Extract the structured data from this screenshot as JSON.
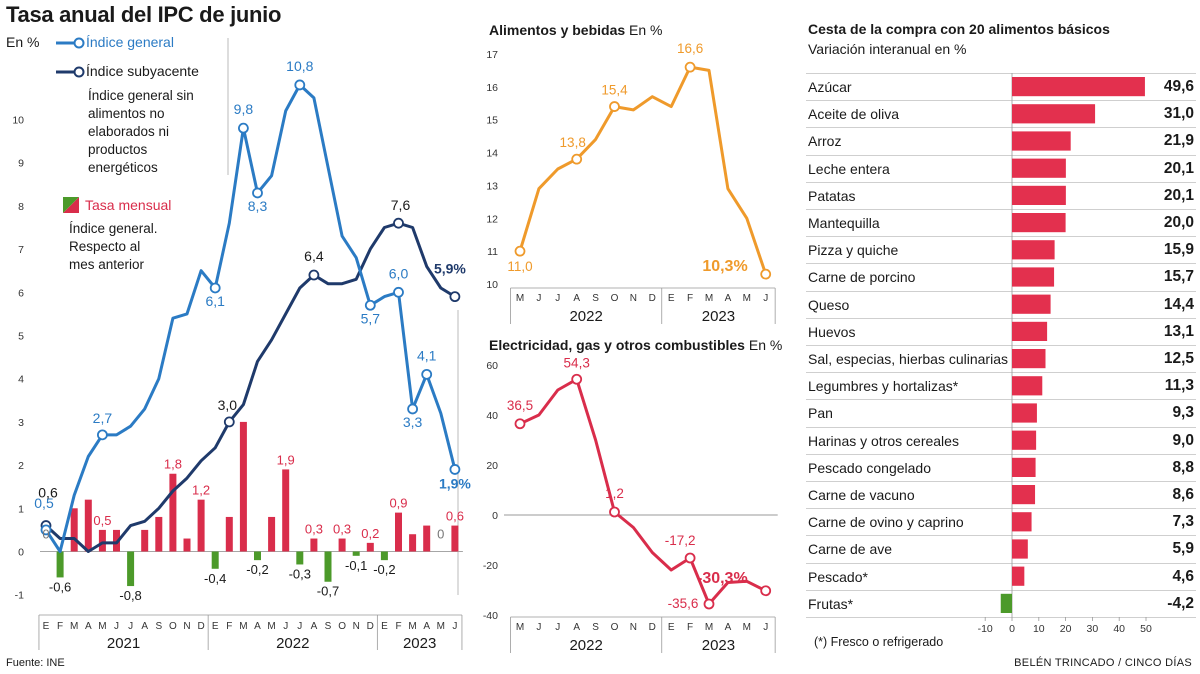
{
  "header": {
    "title": "Tasa anual del IPC de junio",
    "unit": "En %",
    "legend_general": "Índice general",
    "legend_subyacente": "Índice subyacente",
    "subyacente_note": [
      "Índice general sin",
      "alimentos no",
      "elaborados ni",
      "productos",
      "energéticos"
    ],
    "legend_mensual": "Tasa mensual",
    "mensual_note": [
      "Índice general.",
      "Respecto al",
      "mes anterior"
    ]
  },
  "colors": {
    "general": "#2b7bc4",
    "subyacente": "#1f3a6b",
    "monthly_pos": "#d92d4b",
    "monthly_neg": "#4c9a2a",
    "food": "#ef9a2b",
    "elec": "#d92d4b",
    "basket_pos": "#e3304e",
    "basket_neg": "#4c9a2a"
  },
  "chart_data": [
    {
      "type": "line",
      "title": "Tasa anual del IPC de junio",
      "ylabel": "En %",
      "ylim": [
        -1,
        10
      ],
      "yticks": [
        "-1",
        "0",
        "1",
        "2",
        "3",
        "4",
        "5",
        "6",
        "7",
        "8",
        "9",
        "10"
      ],
      "month_ticks": [
        "E",
        "F",
        "M",
        "A",
        "M",
        "J",
        "J",
        "A",
        "S",
        "O",
        "N",
        "D",
        "E",
        "F",
        "M",
        "A",
        "M",
        "J",
        "J",
        "A",
        "S",
        "O",
        "N",
        "D",
        "E",
        "F",
        "M",
        "A",
        "M",
        "J"
      ],
      "years": [
        "2021",
        "2022",
        "2023"
      ],
      "series": [
        {
          "name": "Índice general",
          "values": [
            0.5,
            0.0,
            1.3,
            2.2,
            2.7,
            2.7,
            2.9,
            3.3,
            4.0,
            5.4,
            5.5,
            6.5,
            6.1,
            7.6,
            9.8,
            8.3,
            8.7,
            10.2,
            10.8,
            10.5,
            8.9,
            7.3,
            6.8,
            5.7,
            5.9,
            6.0,
            3.3,
            4.1,
            3.2,
            1.9
          ]
        },
        {
          "name": "Índice subyacente",
          "values": [
            0.6,
            0.3,
            0.3,
            0.0,
            0.2,
            0.2,
            0.6,
            0.7,
            1.0,
            1.4,
            1.7,
            2.1,
            2.4,
            3.0,
            3.4,
            4.4,
            4.9,
            5.5,
            6.1,
            6.4,
            6.2,
            6.2,
            6.3,
            7.0,
            7.5,
            7.6,
            7.5,
            6.6,
            6.1,
            5.9
          ]
        },
        {
          "name": "Tasa mensual",
          "values": [
            0.0,
            -0.6,
            1.0,
            1.2,
            0.5,
            0.5,
            -0.8,
            0.5,
            0.8,
            1.8,
            0.3,
            1.2,
            -0.4,
            0.8,
            3.0,
            -0.2,
            0.8,
            1.9,
            -0.3,
            0.3,
            -0.7,
            0.3,
            -0.1,
            0.2,
            -0.2,
            0.9,
            0.4,
            0.6,
            0.0,
            0.6
          ]
        }
      ],
      "annotations": {
        "general": [
          {
            "i": 0,
            "label": "0,5"
          },
          {
            "i": 4,
            "label": "2,7"
          },
          {
            "i": 12,
            "label": "6,1"
          },
          {
            "i": 14,
            "label": "9,8"
          },
          {
            "i": 15,
            "label": "8,3"
          },
          {
            "i": 18,
            "label": "10,8"
          },
          {
            "i": 23,
            "label": "5,7"
          },
          {
            "i": 25,
            "label": "6,0"
          },
          {
            "i": 26,
            "label": "3,3"
          },
          {
            "i": 27,
            "label": "4,1"
          },
          {
            "i": 29,
            "label": "1,9%"
          }
        ],
        "subyacente": [
          {
            "i": 0,
            "label": "0,6"
          },
          {
            "i": 13,
            "label": "3,0"
          },
          {
            "i": 19,
            "label": "6,4"
          },
          {
            "i": 25,
            "label": "7,6"
          },
          {
            "i": 29,
            "label": "5,9%"
          }
        ],
        "monthly": [
          {
            "i": 0,
            "label": "0"
          },
          {
            "i": 1,
            "label": "-0,6"
          },
          {
            "i": 4,
            "label": "0,5"
          },
          {
            "i": 6,
            "label": "-0,8"
          },
          {
            "i": 9,
            "label": "1,8"
          },
          {
            "i": 11,
            "label": "1,2"
          },
          {
            "i": 12,
            "label": "-0,4"
          },
          {
            "i": 15,
            "label": "-0,2"
          },
          {
            "i": 17,
            "label": "1,9"
          },
          {
            "i": 18,
            "label": "-0,3"
          },
          {
            "i": 19,
            "label": "0,3"
          },
          {
            "i": 20,
            "label": "-0,7"
          },
          {
            "i": 21,
            "label": "0,3"
          },
          {
            "i": 22,
            "label": "-0,1"
          },
          {
            "i": 23,
            "label": "0,2"
          },
          {
            "i": 24,
            "label": "-0,2"
          },
          {
            "i": 25,
            "label": "0,9"
          },
          {
            "i": 28,
            "label": "0"
          },
          {
            "i": 29,
            "label": "0,6"
          }
        ]
      }
    },
    {
      "type": "line",
      "title": "Alimentos y bebidas",
      "unit": "En %",
      "ylim": [
        10,
        17
      ],
      "yticks": [
        "10",
        "11",
        "12",
        "13",
        "14",
        "15",
        "16",
        "17"
      ],
      "month_ticks": [
        "M",
        "J",
        "J",
        "A",
        "S",
        "O",
        "N",
        "D",
        "E",
        "F",
        "M",
        "A",
        "M",
        "J"
      ],
      "years": [
        "2022",
        "2023"
      ],
      "series": [
        {
          "name": "Alimentos y bebidas",
          "values": [
            11.0,
            12.9,
            13.5,
            13.8,
            14.4,
            15.4,
            15.3,
            15.7,
            15.4,
            16.6,
            16.5,
            12.9,
            12.0,
            10.3
          ]
        }
      ],
      "annotations": [
        {
          "i": 0,
          "label": "11,0"
        },
        {
          "i": 3,
          "label": "13,8"
        },
        {
          "i": 5,
          "label": "15,4"
        },
        {
          "i": 9,
          "label": "16,6"
        },
        {
          "i": 13,
          "label": "10,3%"
        }
      ]
    },
    {
      "type": "line",
      "title": "Electricidad, gas y otros combustibles",
      "unit": "En %",
      "ylim": [
        -40,
        60
      ],
      "yticks": [
        "-40",
        "-20",
        "0",
        "20",
        "40",
        "60"
      ],
      "month_ticks": [
        "M",
        "J",
        "J",
        "A",
        "S",
        "O",
        "N",
        "D",
        "E",
        "F",
        "M",
        "A",
        "M",
        "J"
      ],
      "years": [
        "2022",
        "2023"
      ],
      "series": [
        {
          "name": "Electricidad, gas y otros combustibles",
          "values": [
            36.5,
            40.0,
            50.0,
            54.3,
            30.0,
            1.2,
            -5.0,
            -15.0,
            -22.0,
            -17.2,
            -35.6,
            -27.0,
            -26.5,
            -30.3
          ]
        }
      ],
      "annotations": [
        {
          "i": 0,
          "label": "36,5"
        },
        {
          "i": 3,
          "label": "54,3"
        },
        {
          "i": 5,
          "label": "1,2"
        },
        {
          "i": 9,
          "label": "-17,2"
        },
        {
          "i": 10,
          "label": "-35,6"
        },
        {
          "i": 13,
          "label": "-30,3%"
        }
      ]
    },
    {
      "type": "bar",
      "title": "Cesta de la compra con 20 alimentos básicos",
      "subtitle": "Variación interanual en %",
      "categories": [
        "Azúcar",
        "Aceite de oliva",
        "Arroz",
        "Leche entera",
        "Patatas",
        "Mantequilla",
        "Pizza y quiche",
        "Carne de porcino",
        "Queso",
        "Huevos",
        "Sal, especias, hierbas culinarias",
        "Legumbres y hortalizas*",
        "Pan",
        "Harinas y otros cereales",
        "Pescado congelado",
        "Carne de vacuno",
        "Carne de ovino y caprino",
        "Carne de ave",
        "Pescado*",
        "Frutas*"
      ],
      "labels": [
        "49,6",
        "31,0",
        "21,9",
        "20,1",
        "20,1",
        "20,0",
        "15,9",
        "15,7",
        "14,4",
        "13,1",
        "12,5",
        "11,3",
        "9,3",
        "9,0",
        "8,8",
        "8,6",
        "7,3",
        "5,9",
        "4,6",
        "-4,2"
      ],
      "values": [
        49.6,
        31.0,
        21.9,
        20.1,
        20.1,
        20.0,
        15.9,
        15.7,
        14.4,
        13.1,
        12.5,
        11.3,
        9.3,
        9.0,
        8.8,
        8.6,
        7.3,
        5.9,
        4.6,
        -4.2
      ],
      "xlim": [
        -10,
        50
      ],
      "xticks": [
        "-10",
        "0",
        "10",
        "20",
        "30",
        "40",
        "50"
      ],
      "footnote": "(*) Fresco o refrigerado"
    }
  ],
  "footer": {
    "source": "Fuente: INE",
    "credit": "BELÉN TRINCADO / CINCO DÍAS"
  }
}
